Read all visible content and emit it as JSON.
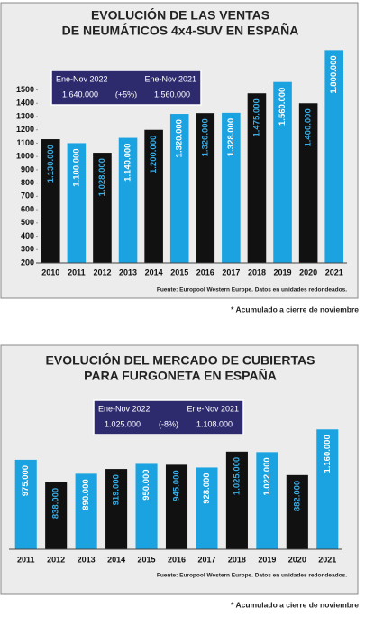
{
  "chart_data": [
    {
      "type": "bar",
      "title": [
        "EVOLUCIÓN DE LAS VENTAS",
        "DE NEUMÁTICOS 4x4-SUV EN ESPAÑA"
      ],
      "categories": [
        "2010",
        "2011",
        "2012",
        "2013",
        "2014",
        "2015",
        "2016",
        "2017",
        "2018",
        "2019",
        "2020",
        "2021"
      ],
      "values": [
        1130,
        1100,
        1028,
        1140,
        1200,
        1320,
        1326,
        1328,
        1475,
        1560,
        1400,
        1800
      ],
      "value_labels": [
        "1.130.000",
        "1.100.000",
        "1.028.000",
        "1.140.000",
        "1.200.000",
        "1.320.000",
        "1.326.000",
        "1.328.000",
        "1.475.000",
        "1.560.000",
        "1.400.000",
        "1.800.000"
      ],
      "colors": [
        "#111111",
        "#1aa3e0",
        "#111111",
        "#1aa3e0",
        "#111111",
        "#1aa3e0",
        "#111111",
        "#1aa3e0",
        "#111111",
        "#1aa3e0",
        "#111111",
        "#1aa3e0"
      ],
      "ylim": [
        200,
        1850
      ],
      "yticks": [
        200,
        300,
        400,
        500,
        600,
        700,
        800,
        900,
        1000,
        1100,
        1200,
        1300,
        1400,
        1500
      ],
      "inset": {
        "left_title": "Ene-Nov 2022",
        "left_value": "1.640.000",
        "change": "(+5%)",
        "right_title": "Ene-Nov 2021",
        "right_value": "1.560.000"
      },
      "source": "Fuente: Europool Western Europe. Datos en unidades redondeados.",
      "note": "* Acumulado a cierre de noviembre"
    },
    {
      "type": "bar",
      "title": [
        "EVOLUCIÓN DEL MERCADO DE CUBIERTAS",
        "PARA FURGONETA EN ESPAÑA"
      ],
      "categories": [
        "2011",
        "2012",
        "2013",
        "2014",
        "2015",
        "2016",
        "2017",
        "2018",
        "2019",
        "2020",
        "2021"
      ],
      "values": [
        975000,
        838000,
        890000,
        919000,
        950000,
        945000,
        928000,
        1025000,
        1022000,
        882000,
        1160000
      ],
      "value_labels": [
        "975.000",
        "838.000",
        "890.000",
        "919.000",
        "950.000",
        "945.000",
        "928.000",
        "1.025.000",
        "1.022.000",
        "882.000",
        "1.160.000"
      ],
      "colors": [
        "#1aa3e0",
        "#111111",
        "#1aa3e0",
        "#111111",
        "#1aa3e0",
        "#111111",
        "#1aa3e0",
        "#111111",
        "#1aa3e0",
        "#111111",
        "#1aa3e0"
      ],
      "ylim": [
        430000,
        1200000
      ],
      "inset": {
        "left_title": "Ene-Nov 2022",
        "left_value": "1.025.000",
        "change": "(-8%)",
        "right_title": "Ene-Nov 2021",
        "right_value": "1.108.000"
      },
      "source": "Fuente: Europool Western Europe. Datos en unidades redondeados.",
      "note": "* Acumulado a cierre de noviembre"
    }
  ]
}
